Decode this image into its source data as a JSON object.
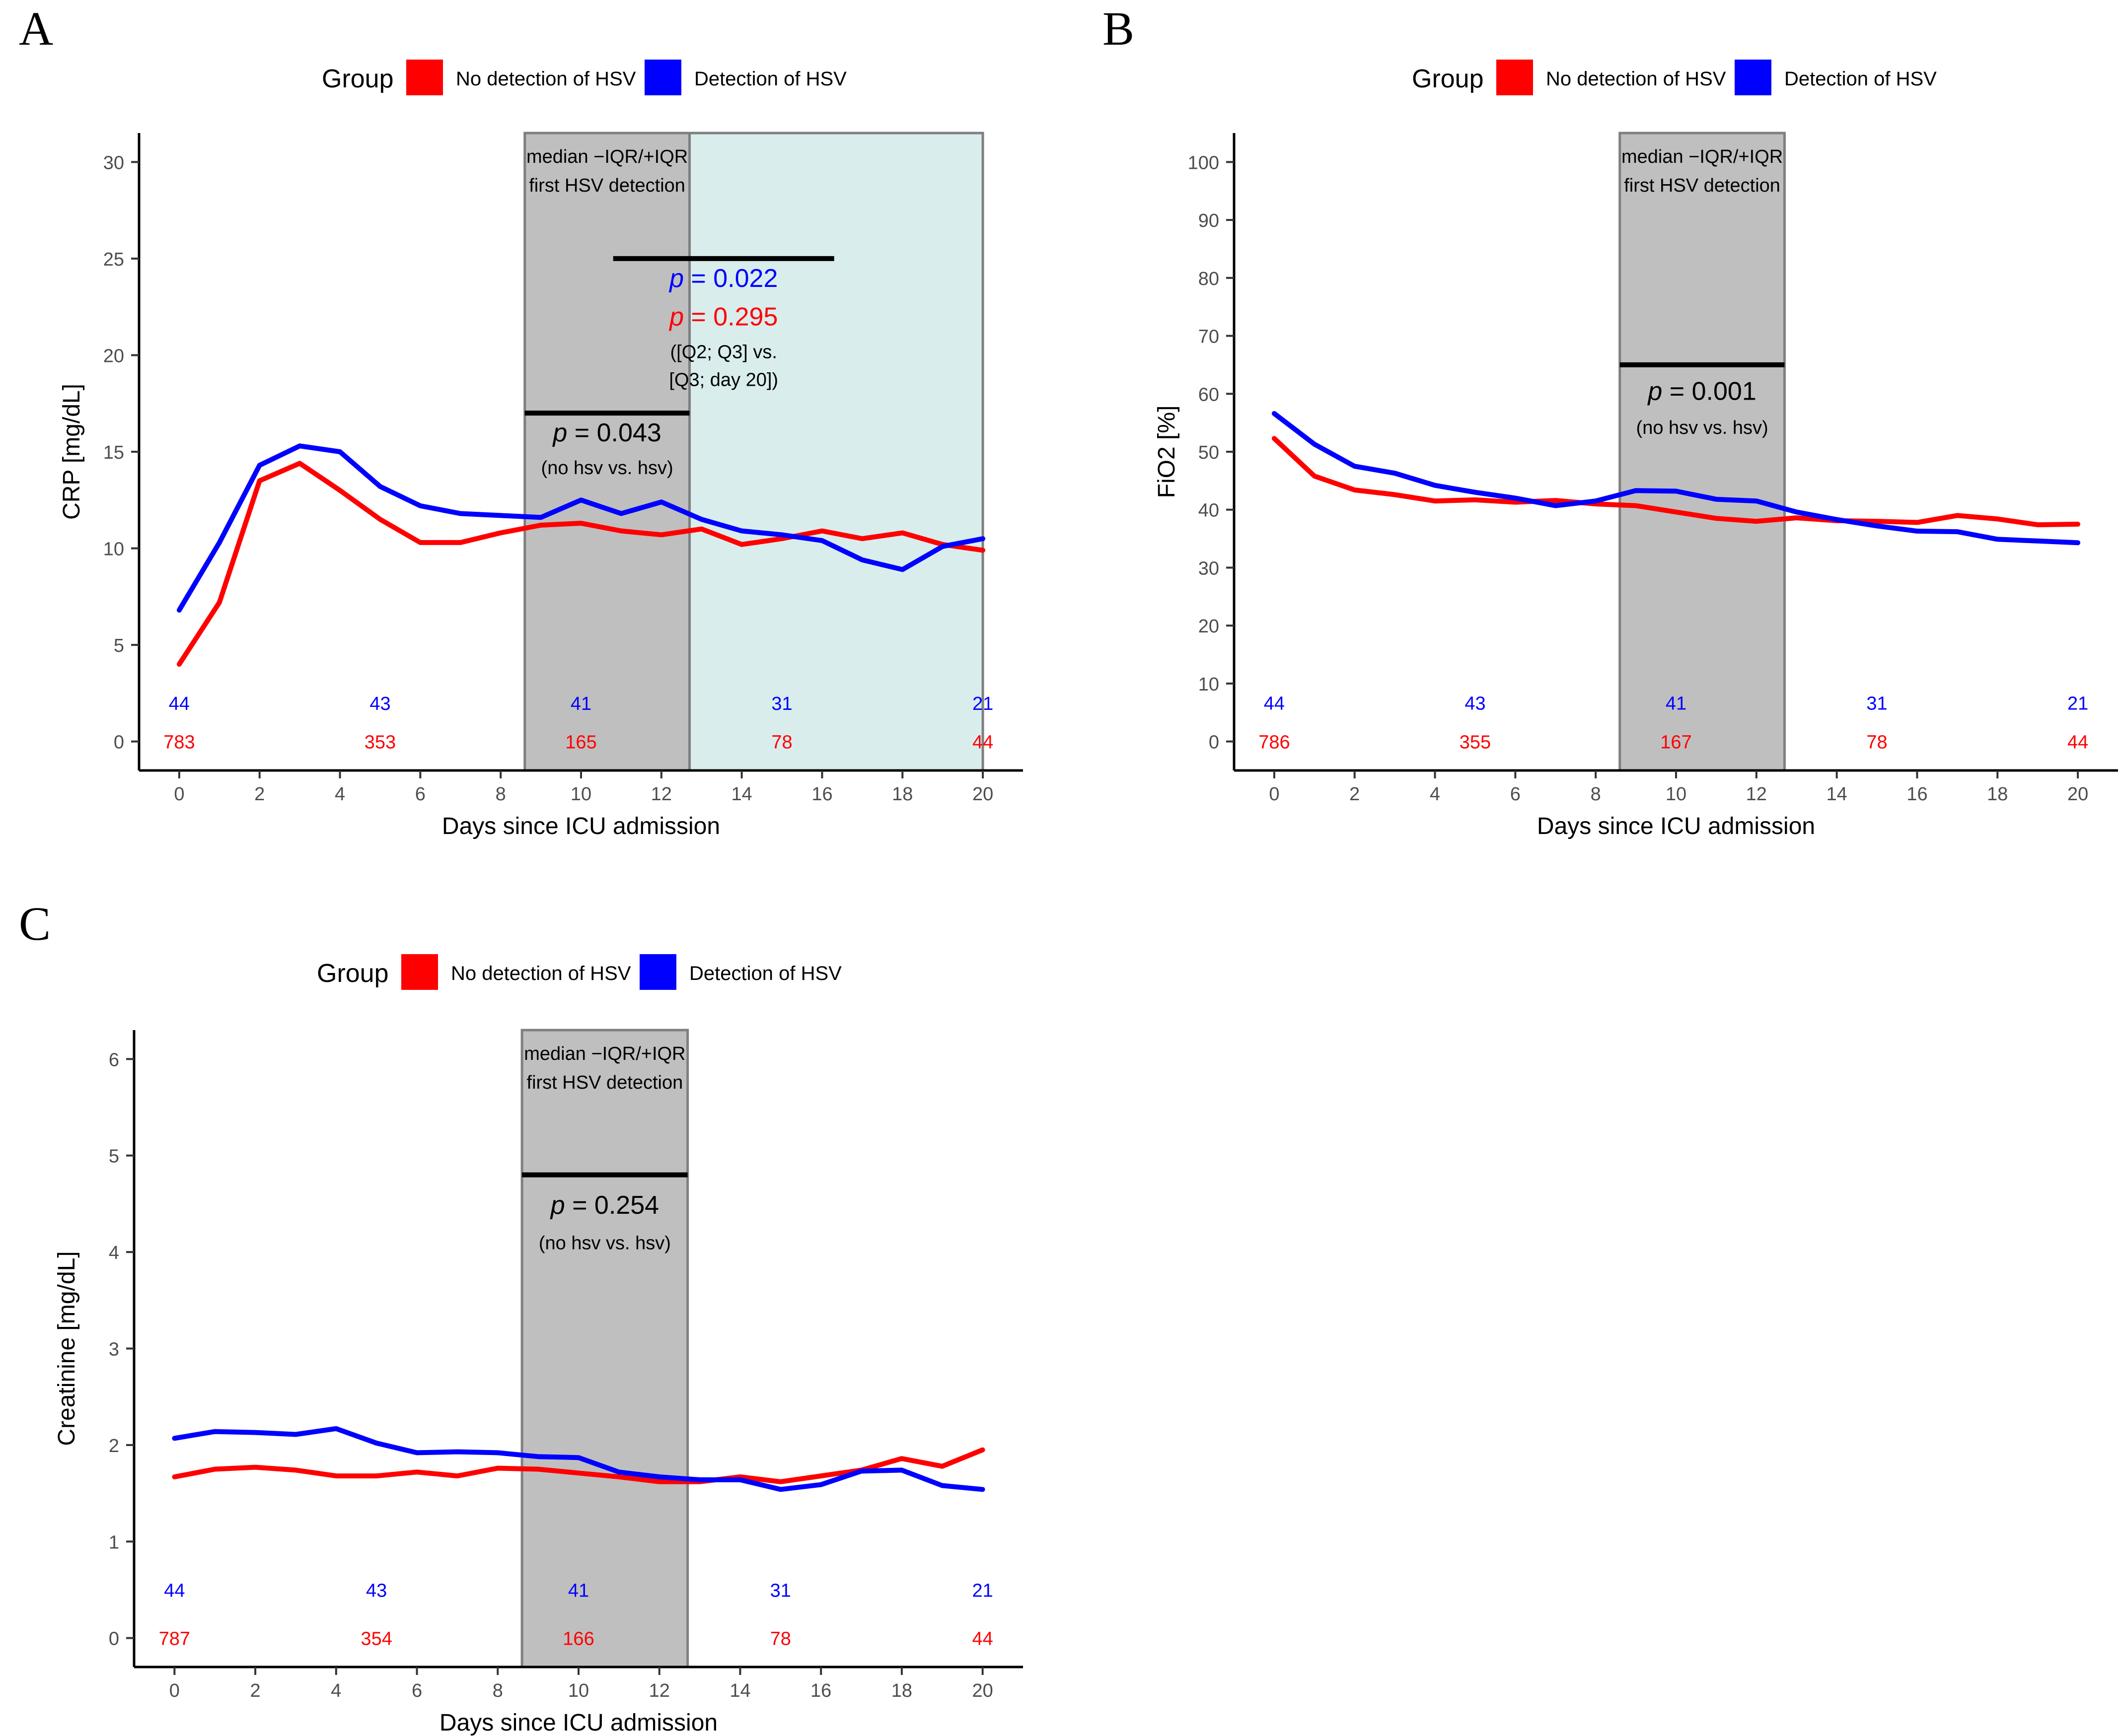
{
  "legend": {
    "title": "Group",
    "entries": [
      {
        "label": "No detection of HSV",
        "color": "#ff0000"
      },
      {
        "label": "Detection of HSV",
        "color": "#0000ff"
      }
    ]
  },
  "colors": {
    "no_hsv": "#ff0000",
    "hsv": "#0000ff",
    "band": "#bfbfbf",
    "band_edge": "#7f7f7f",
    "later_band": "#d9eded"
  },
  "chart_data": [
    {
      "type": "line",
      "panel": "A",
      "xlabel": "Days since ICU admission",
      "ylabel": "CRP [mg/dL]",
      "xlim": [
        -1,
        21
      ],
      "ylim": [
        -1.5,
        31.5
      ],
      "xticks": [
        0,
        2,
        4,
        6,
        8,
        10,
        12,
        14,
        16,
        18,
        20
      ],
      "yticks": [
        0,
        5,
        10,
        15,
        20,
        25,
        30
      ],
      "series": [
        {
          "name": "No detection of HSV",
          "color": "#ff0000",
          "x": [
            0,
            1,
            2,
            3,
            4,
            5,
            6,
            7,
            8,
            9,
            10,
            11,
            12,
            13,
            14,
            15,
            16,
            17,
            18,
            19,
            20
          ],
          "values": [
            4.0,
            7.2,
            13.5,
            14.4,
            13.0,
            11.5,
            10.3,
            10.3,
            10.8,
            11.2,
            11.3,
            10.9,
            10.7,
            11.0,
            10.2,
            10.5,
            10.9,
            10.5,
            10.8,
            10.2,
            9.9
          ]
        },
        {
          "name": "Detection of HSV",
          "color": "#0000ff",
          "x": [
            0,
            1,
            2,
            3,
            4,
            5,
            6,
            7,
            8,
            9,
            10,
            11,
            12,
            13,
            14,
            15,
            16,
            17,
            18,
            19,
            20
          ],
          "values": [
            6.8,
            10.3,
            14.3,
            15.3,
            15.0,
            13.2,
            12.2,
            11.8,
            11.7,
            11.6,
            12.5,
            11.8,
            12.4,
            11.5,
            10.9,
            10.7,
            10.4,
            9.4,
            8.9,
            10.1,
            10.5
          ]
        }
      ],
      "iqr_band": {
        "x_range": [
          8.6,
          12.7
        ],
        "label": [
          "median −IQR/+IQR",
          "first HSV detection"
        ]
      },
      "later_band": {
        "x_range": [
          12.7,
          20
        ]
      },
      "annotations": [
        {
          "id": "p1",
          "bar_x": [
            8.6,
            12.7
          ],
          "bar_y": 17.0,
          "p_label": "p",
          "p_value": "= 0.043",
          "p_color": "#000000",
          "text_y": 16.0,
          "note": "(no hsv vs. hsv)",
          "note_y": 14.2
        },
        {
          "id": "p2",
          "bar_x": [
            10.8,
            16.3
          ],
          "bar_y": 25.0,
          "p_label": "p",
          "p_value": "= 0.022",
          "p_color": "#0000ff",
          "text_y": 24.0,
          "p2_label": "p",
          "p2_value": "= 0.295",
          "p2_color": "#ff0000",
          "text2_y": 22.0,
          "note_lines": [
            "([Q2; Q3] vs.",
            "[Q3; day 20])"
          ],
          "note_y": 20.2
        }
      ],
      "n_at_risk": {
        "x": [
          0,
          5,
          10,
          15,
          20
        ],
        "hsv": [
          "44",
          "43",
          "41",
          "31",
          "21"
        ],
        "no_hsv": [
          "783",
          "353",
          "165",
          "78",
          "44"
        ],
        "hsv_y": 2.0,
        "no_hsv_y": 0.0
      }
    },
    {
      "type": "line",
      "panel": "B",
      "xlabel": "Days since ICU admission",
      "ylabel": "FiO2 [%]",
      "xlim": [
        -1,
        21
      ],
      "ylim": [
        -5,
        105
      ],
      "xticks": [
        0,
        2,
        4,
        6,
        8,
        10,
        12,
        14,
        16,
        18,
        20
      ],
      "yticks": [
        0,
        10,
        20,
        30,
        40,
        50,
        60,
        70,
        80,
        90,
        100
      ],
      "series": [
        {
          "name": "No detection of HSV",
          "color": "#ff0000",
          "x": [
            0,
            1,
            2,
            3,
            4,
            5,
            6,
            7,
            8,
            9,
            10,
            11,
            12,
            13,
            14,
            15,
            16,
            17,
            18,
            19,
            20
          ],
          "values": [
            52.3,
            45.8,
            43.4,
            42.6,
            41.5,
            41.7,
            41.3,
            41.6,
            41.0,
            40.7,
            39.6,
            38.5,
            38.0,
            38.6,
            38.1,
            38.0,
            37.8,
            39.0,
            38.4,
            37.4,
            37.5
          ]
        },
        {
          "name": "Detection of HSV",
          "color": "#0000ff",
          "x": [
            0,
            1,
            2,
            3,
            4,
            5,
            6,
            7,
            8,
            9,
            10,
            11,
            12,
            13,
            14,
            15,
            16,
            17,
            18,
            19,
            20
          ],
          "values": [
            56.6,
            51.3,
            47.5,
            46.3,
            44.2,
            43.0,
            42.0,
            40.7,
            41.5,
            43.3,
            43.2,
            41.8,
            41.5,
            39.6,
            38.3,
            37.2,
            36.3,
            36.2,
            34.9,
            34.6,
            34.3
          ]
        }
      ],
      "iqr_band": {
        "x_range": [
          8.6,
          12.7
        ],
        "label": [
          "median −IQR/+IQR",
          "first HSV detection"
        ]
      },
      "annotations": [
        {
          "id": "p1",
          "bar_x": [
            8.6,
            12.7
          ],
          "bar_y": 65.0,
          "p_label": "p",
          "p_value": "= 0.001",
          "p_color": "#000000",
          "text_y": 60.5,
          "note": "(no hsv vs. hsv)",
          "note_y": 54.3
        }
      ],
      "n_at_risk": {
        "x": [
          0,
          5,
          10,
          15,
          20
        ],
        "hsv": [
          "44",
          "43",
          "41",
          "31",
          "21"
        ],
        "no_hsv": [
          "786",
          "355",
          "167",
          "78",
          "44"
        ],
        "hsv_y": 6.7,
        "no_hsv_y": 0.0
      }
    },
    {
      "type": "line",
      "panel": "C",
      "xlabel": "Days since ICU admission",
      "ylabel": "Creatinine [mg/dL]",
      "xlim": [
        -1,
        21
      ],
      "ylim": [
        -0.3,
        6.3
      ],
      "xticks": [
        0,
        2,
        4,
        6,
        8,
        10,
        12,
        14,
        16,
        18,
        20
      ],
      "yticks": [
        0,
        1,
        2,
        3,
        4,
        5,
        6
      ],
      "series": [
        {
          "name": "No detection of HSV",
          "color": "#ff0000",
          "x": [
            0,
            1,
            2,
            3,
            4,
            5,
            6,
            7,
            8,
            9,
            10,
            11,
            12,
            13,
            14,
            15,
            16,
            17,
            18,
            19,
            20
          ],
          "values": [
            1.67,
            1.75,
            1.77,
            1.74,
            1.68,
            1.68,
            1.72,
            1.68,
            1.76,
            1.75,
            1.71,
            1.67,
            1.62,
            1.62,
            1.67,
            1.62,
            1.68,
            1.74,
            1.86,
            1.78,
            1.95
          ]
        },
        {
          "name": "Detection of HSV",
          "color": "#0000ff",
          "x": [
            0,
            1,
            2,
            3,
            4,
            5,
            6,
            7,
            8,
            9,
            10,
            11,
            12,
            13,
            14,
            15,
            16,
            17,
            18,
            19,
            20
          ],
          "values": [
            2.07,
            2.14,
            2.13,
            2.11,
            2.17,
            2.02,
            1.92,
            1.93,
            1.92,
            1.88,
            1.87,
            1.72,
            1.67,
            1.64,
            1.64,
            1.54,
            1.59,
            1.73,
            1.74,
            1.58,
            1.54
          ]
        }
      ],
      "iqr_band": {
        "x_range": [
          8.6,
          12.7
        ],
        "label": [
          "median −IQR/+IQR",
          "first HSV detection"
        ]
      },
      "annotations": [
        {
          "id": "p1",
          "bar_x": [
            8.6,
            12.7
          ],
          "bar_y": 4.8,
          "p_label": "p",
          "p_value": "= 0.254",
          "p_color": "#000000",
          "text_y": 4.49,
          "note": "(no hsv vs. hsv)",
          "note_y": 4.1
        }
      ],
      "n_at_risk": {
        "x": [
          0,
          5,
          10,
          15,
          20
        ],
        "hsv": [
          "44",
          "43",
          "41",
          "31",
          "21"
        ],
        "no_hsv": [
          "787",
          "354",
          "166",
          "78",
          "44"
        ],
        "hsv_y": 0.5,
        "no_hsv_y": 0.0
      }
    }
  ]
}
